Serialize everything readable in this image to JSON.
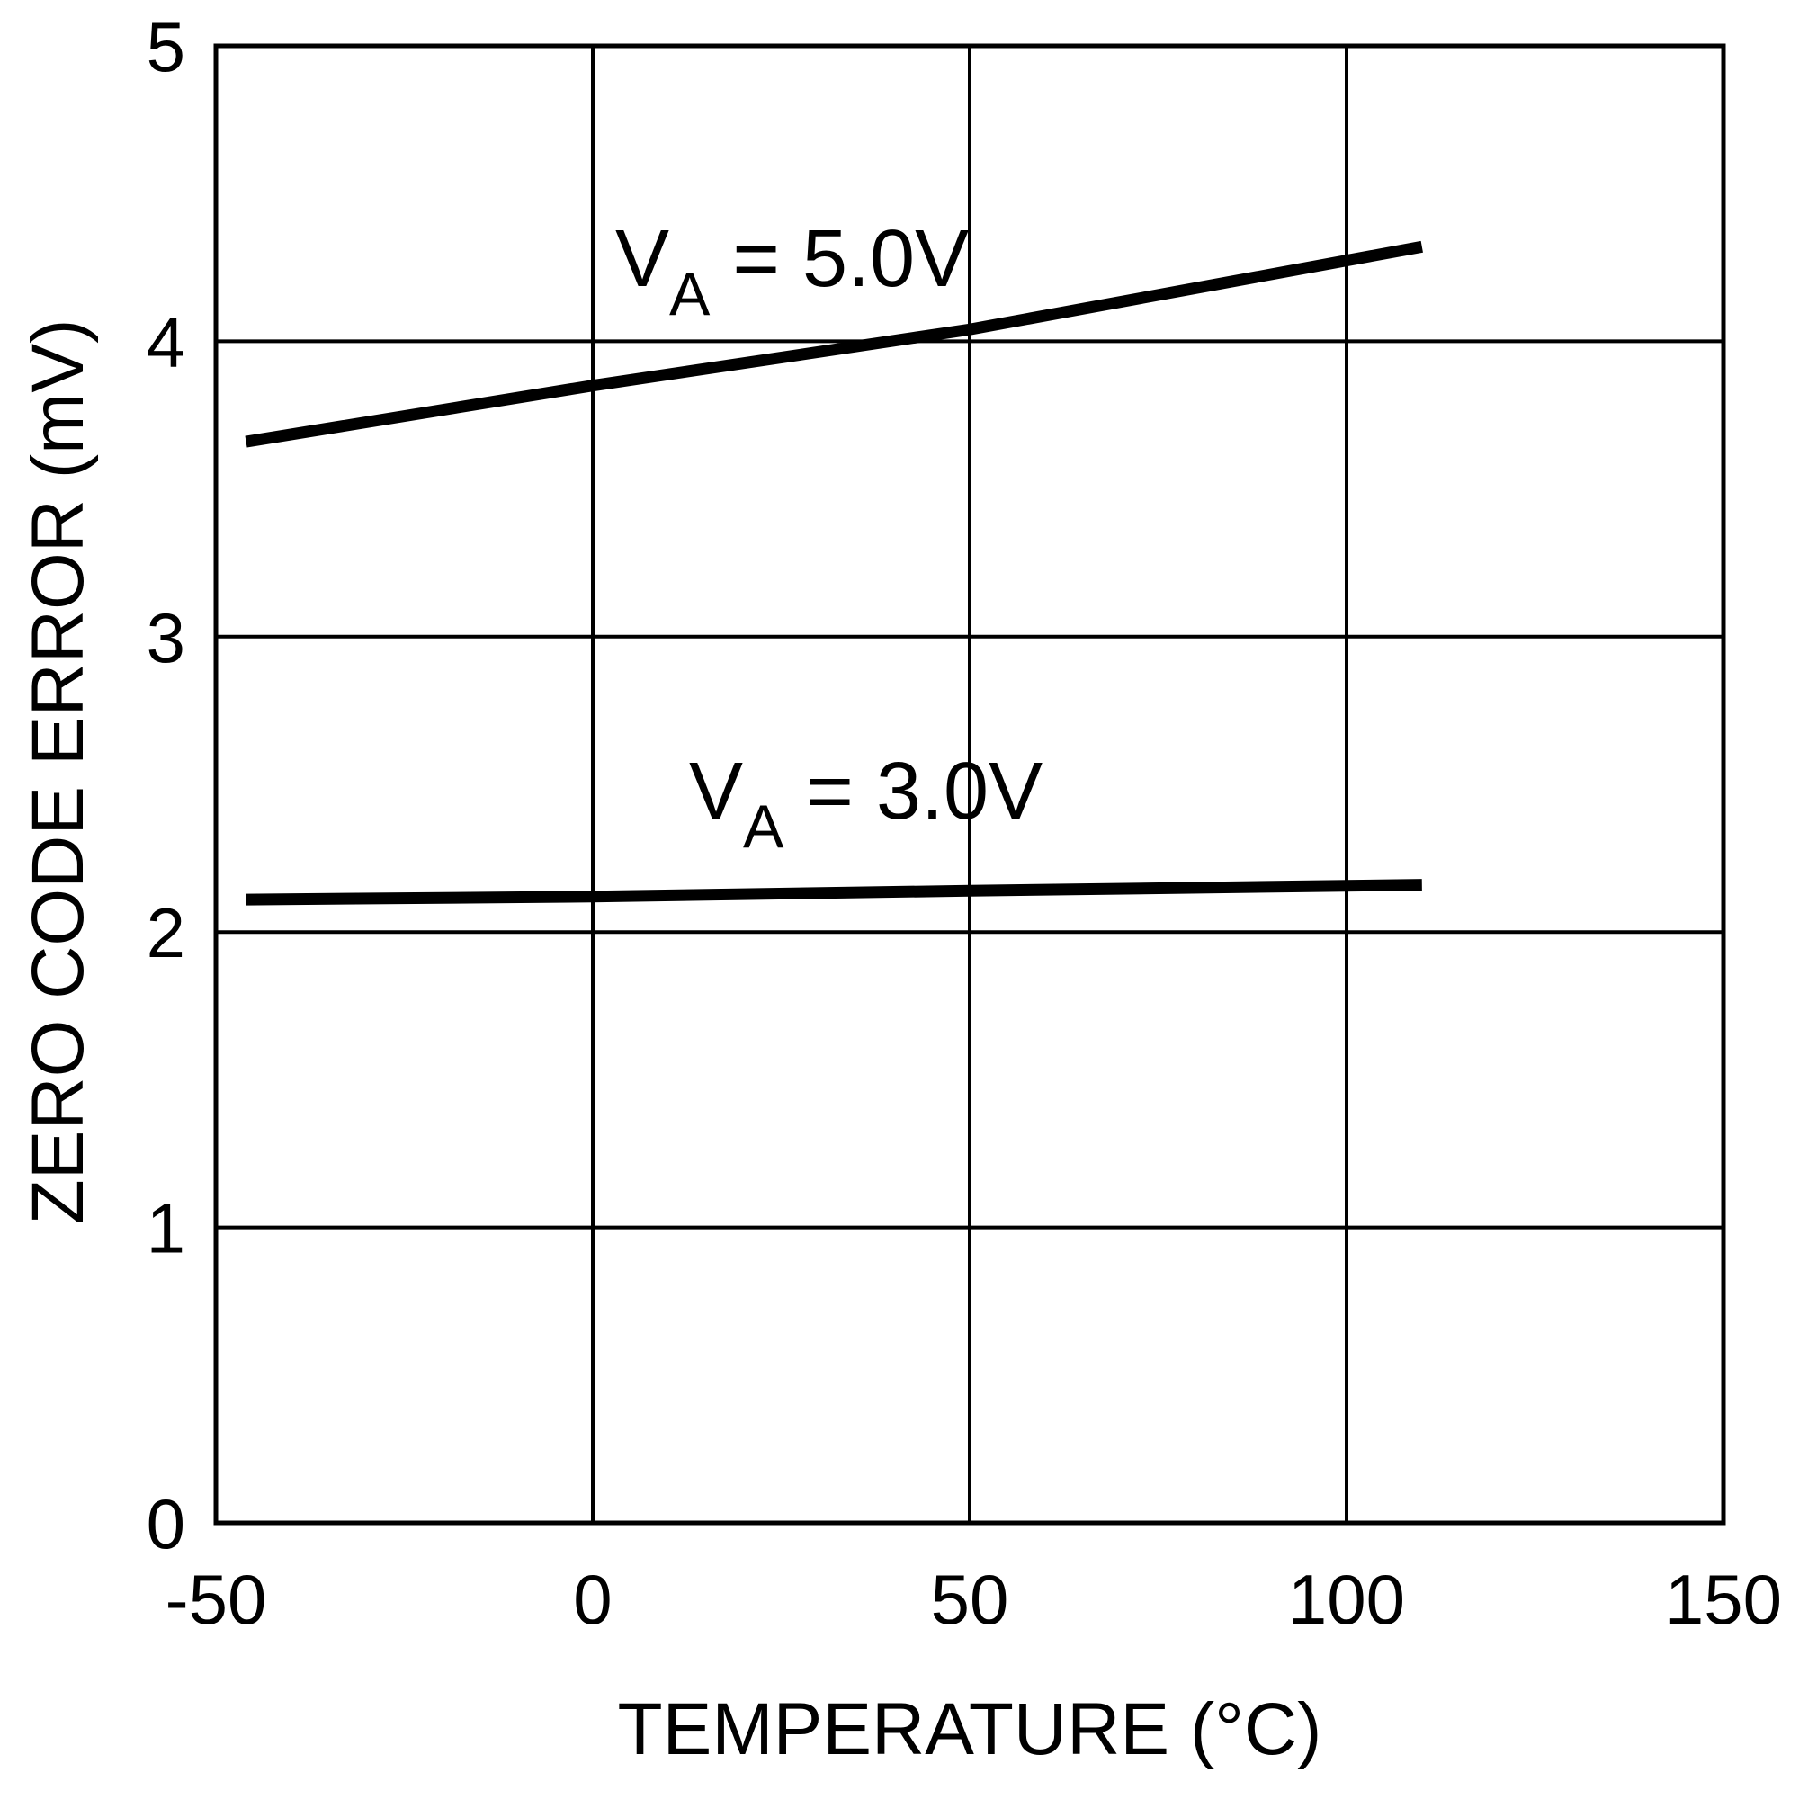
{
  "chart_data": {
    "type": "line",
    "x_label": "TEMPERATURE (°C)",
    "y_label": "ZERO CODE ERROR (mV)",
    "xlim": [
      -50,
      150
    ],
    "xticks": [
      -50,
      0,
      50,
      100,
      150
    ],
    "ylim": [
      0,
      5
    ],
    "yticks": [
      0,
      1,
      2,
      3,
      4,
      5
    ],
    "grid": true,
    "series": [
      {
        "label": {
          "main": "V",
          "sub": "A",
          "rest": " = 5.0V"
        },
        "color": "#000000",
        "x": [
          -46,
          0,
          50,
          110
        ],
        "values": [
          3.66,
          3.85,
          4.04,
          4.32
        ]
      },
      {
        "label": {
          "main": "V",
          "sub": "A",
          "rest": " = 3.0V"
        },
        "color": "#000000",
        "x": [
          -46,
          0,
          50,
          110
        ],
        "values": [
          2.11,
          2.12,
          2.14,
          2.16
        ]
      }
    ]
  }
}
